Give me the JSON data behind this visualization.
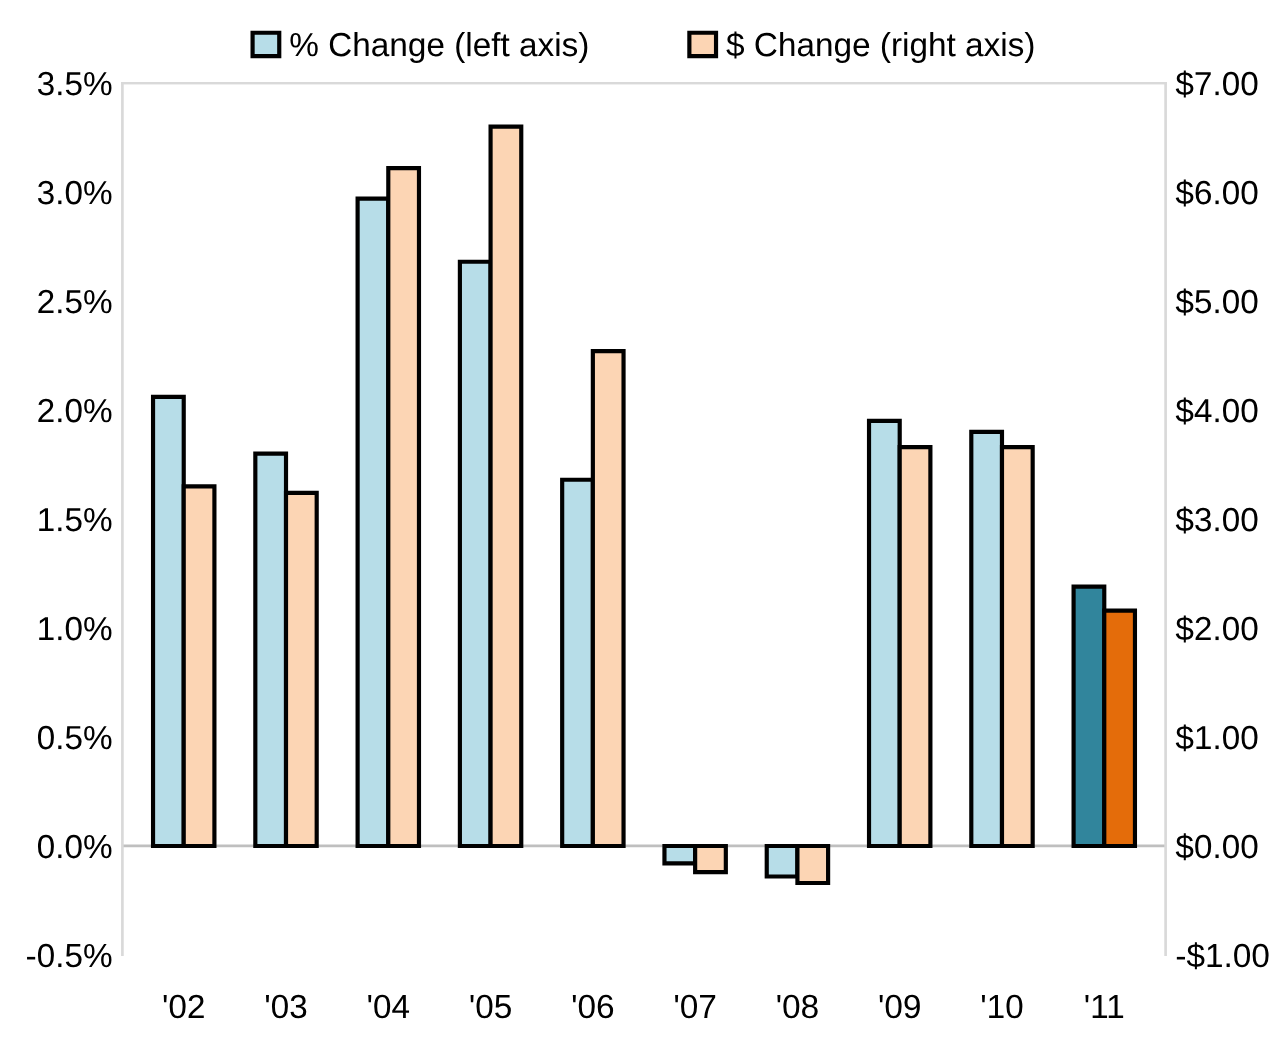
{
  "chart_data": {
    "type": "bar",
    "categories": [
      "'02",
      "'03",
      "'04",
      "'05",
      "'06",
      "'07",
      "'08",
      "'09",
      "'10",
      "'11"
    ],
    "series": [
      {
        "name": "% Change (left axis)",
        "color": "#b7dde8",
        "colors": [
          "#b7dde8",
          "#b7dde8",
          "#b7dde8",
          "#b7dde8",
          "#b7dde8",
          "#b7dde8",
          "#b7dde8",
          "#b7dde8",
          "#b7dde8",
          "#31859c"
        ],
        "values": [
          2.06,
          1.8,
          2.97,
          2.68,
          1.68,
          -0.08,
          -0.14,
          1.95,
          1.9,
          1.19
        ]
      },
      {
        "name": "$ Change (right axis)",
        "axis": "y2",
        "color": "#fcd5b4",
        "colors": [
          "#fcd5b4",
          "#fcd5b4",
          "#fcd5b4",
          "#fcd5b4",
          "#fcd5b4",
          "#fcd5b4",
          "#fcd5b4",
          "#fcd5b4",
          "#fcd5b4",
          "#e46c0a"
        ],
        "values": [
          3.3,
          3.24,
          6.22,
          6.6,
          4.54,
          -0.24,
          -0.34,
          3.66,
          3.66,
          2.16
        ]
      }
    ],
    "ylim": [
      -0.5,
      3.5
    ],
    "yticks": [
      {
        "value": -0.5,
        "label": "-0.5%"
      },
      {
        "value": 0,
        "label": "0.0%"
      },
      {
        "value": 0.5,
        "label": "0.5%"
      },
      {
        "value": 1,
        "label": "1.0%"
      },
      {
        "value": 1.5,
        "label": "1.5%"
      },
      {
        "value": 2,
        "label": "2.0%"
      },
      {
        "value": 2.5,
        "label": "2.5%"
      },
      {
        "value": 3,
        "label": "3.0%"
      },
      {
        "value": 3.5,
        "label": "3.5%"
      }
    ],
    "y2lim": [
      -1,
      7
    ],
    "y2ticks": [
      {
        "value": -1,
        "label": "-$1.00"
      },
      {
        "value": 0,
        "label": "$0.00"
      },
      {
        "value": 1,
        "label": "$1.00"
      },
      {
        "value": 2,
        "label": "$2.00"
      },
      {
        "value": 3,
        "label": "$3.00"
      },
      {
        "value": 4,
        "label": "$4.00"
      },
      {
        "value": 5,
        "label": "$5.00"
      },
      {
        "value": 6,
        "label": "$6.00"
      },
      {
        "value": 7,
        "label": "$7.00"
      }
    ],
    "legend": "top"
  }
}
